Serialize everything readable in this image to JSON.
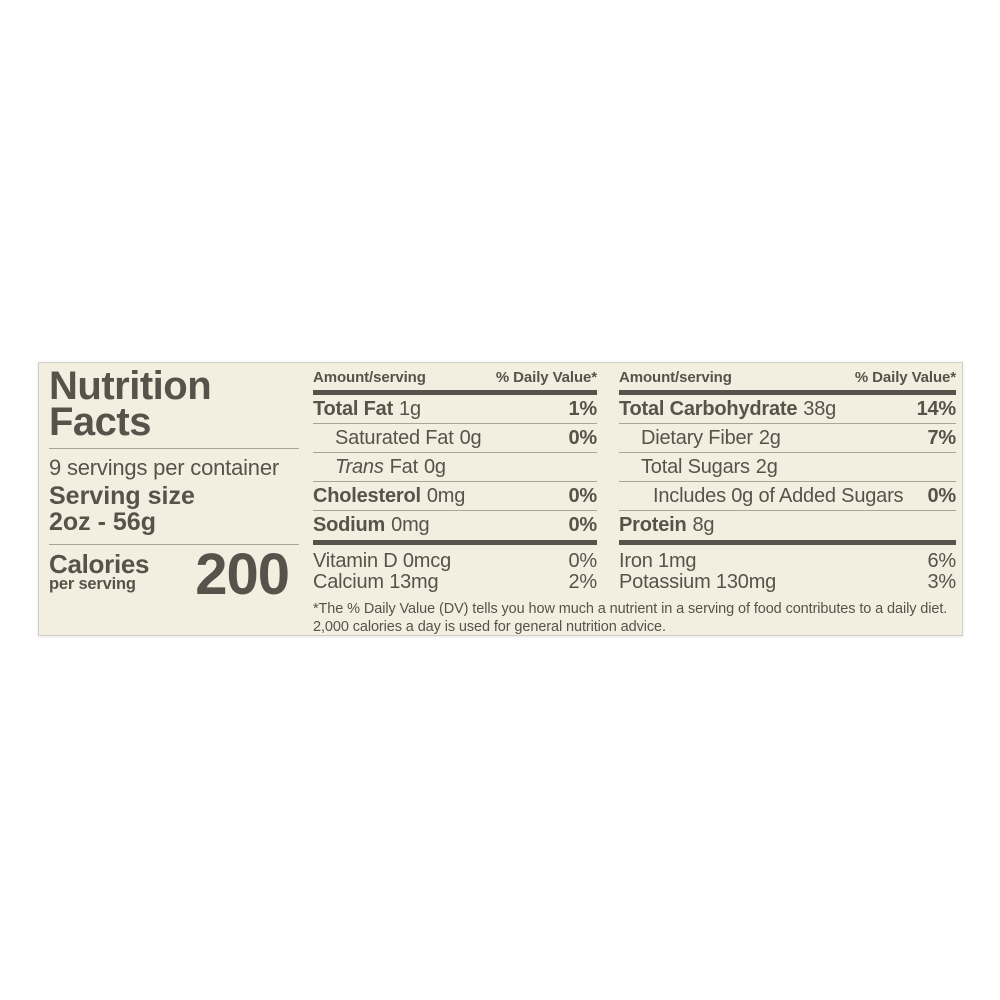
{
  "label": {
    "colors": {
      "background": "#f2efe0",
      "text": "#57534b",
      "hairline": "#a9a59a",
      "bar": "#57534b",
      "edge": "#d2cfc3",
      "page": "#ffffff"
    },
    "title": {
      "line1": "Nutrition",
      "line2": "Facts"
    },
    "servings_per_container": "9 servings per container",
    "serving_size": {
      "label": "Serving size",
      "value": "2oz - 56g"
    },
    "calories": {
      "label": "Calories",
      "sublabel": "per serving",
      "value": "200"
    },
    "columns": [
      {
        "header": {
          "amount": "Amount/serving",
          "daily_value": "% Daily Value*"
        },
        "rows": [
          {
            "name": "Total Fat",
            "amount": "1g",
            "dv": "1%"
          },
          {
            "name": "Saturated Fat",
            "amount": "0g",
            "dv": "0%"
          },
          {
            "name_italic": "Trans",
            "name": "Fat",
            "amount": "0g",
            "dv": ""
          },
          {
            "name": "Cholesterol",
            "amount": "0mg",
            "dv": "0%"
          },
          {
            "name": "Sodium",
            "amount": "0mg",
            "dv": "0%"
          }
        ],
        "micros": [
          {
            "name": "Vitamin D 0mcg",
            "dv": "0%"
          },
          {
            "name": "Calcium 13mg",
            "dv": "2%"
          }
        ]
      },
      {
        "header": {
          "amount": "Amount/serving",
          "daily_value": "% Daily Value*"
        },
        "rows": [
          {
            "name": "Total Carbohydrate",
            "amount": "38g",
            "dv": "14%"
          },
          {
            "name": "Dietary Fiber",
            "amount": "2g",
            "dv": "7%"
          },
          {
            "name": "Total Sugars",
            "amount": "2g",
            "dv": ""
          },
          {
            "name": "Includes 0g of Added Sugars",
            "amount": "",
            "dv": "0%"
          },
          {
            "name": "Protein",
            "amount": "8g",
            "dv": ""
          }
        ],
        "micros": [
          {
            "name": "Iron 1mg",
            "dv": "6%"
          },
          {
            "name": "Potassium 130mg",
            "dv": "3%"
          }
        ]
      }
    ],
    "footnote": {
      "line1": "*The % Daily Value (DV) tells you how much a nutrient in a serving of food contributes to a daily diet.",
      "line2": "2,000 calories a day is used for general nutrition advice."
    }
  }
}
